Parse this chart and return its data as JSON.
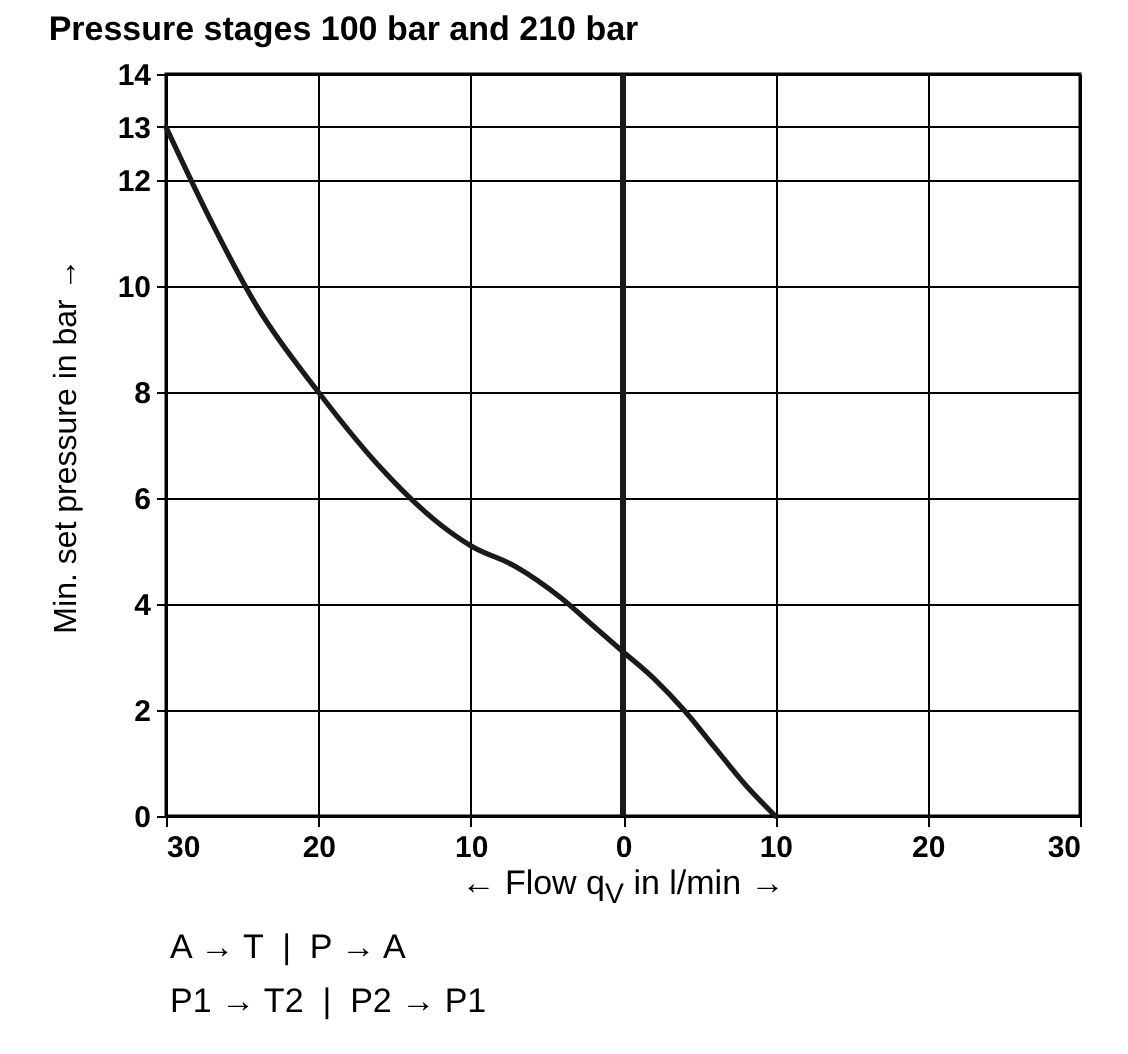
{
  "chart_data": {
    "type": "line",
    "title": "Pressure stages 100 bar and 210 bar",
    "xlabel": "← Flow q$_{V}$ in l/min →",
    "ylabel": "Min. set pressure in bar →",
    "x": [
      -30,
      -27,
      -24,
      -20,
      -16,
      -12,
      -10,
      -7,
      -4,
      -2,
      0,
      2,
      4,
      6,
      8,
      10
    ],
    "series": [
      {
        "color": "#1a1a1a",
        "values": [
          13,
          11.2,
          9.6,
          8,
          6.6,
          5.5,
          5.1,
          4.7,
          4.1,
          3.6,
          3.1,
          2.6,
          2,
          1.3,
          0.6,
          0
        ]
      }
    ],
    "xlim": [
      -30,
      30
    ],
    "xticks": [
      {
        "value": -30,
        "label": "30"
      },
      {
        "value": -20,
        "label": "20"
      },
      {
        "value": -10,
        "label": "10"
      },
      0,
      10,
      20,
      30
    ],
    "ylim": [
      0,
      14
    ],
    "yticks": [
      0,
      2,
      4,
      6,
      8,
      10,
      12,
      13,
      14
    ],
    "ref_lines": [
      {
        "axis": "x",
        "value": 0,
        "color": "#1a1a1a"
      }
    ],
    "grid": true,
    "marker": "none",
    "line_style": "solid",
    "annotations": [
      "A → T  |  P → A",
      "P1 → T2  |  P2 → P1"
    ]
  }
}
